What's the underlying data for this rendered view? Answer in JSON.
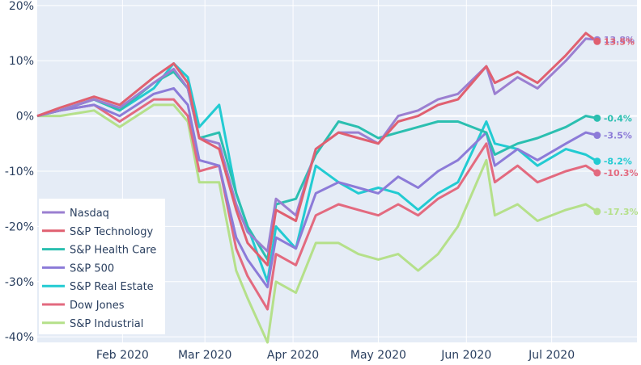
{
  "chart_data": {
    "type": "line",
    "title": "",
    "xlabel": "",
    "ylabel": "",
    "x_range": [
      "2020-01-02",
      "2020-07-31"
    ],
    "ylim": [
      -41,
      21
    ],
    "y_ticks": [
      {
        "value": 20,
        "label": "20%"
      },
      {
        "value": 10,
        "label": "10%"
      },
      {
        "value": 0,
        "label": "0%"
      },
      {
        "value": -10,
        "label": "-10%"
      },
      {
        "value": -20,
        "label": "-20%"
      },
      {
        "value": -30,
        "label": "-30%"
      },
      {
        "value": -40,
        "label": "-40%"
      }
    ],
    "x_ticks": [
      {
        "date": "2020-02-01",
        "label": "Feb 2020"
      },
      {
        "date": "2020-03-01",
        "label": "Mar 2020"
      },
      {
        "date": "2020-04-01",
        "label": "Apr 2020"
      },
      {
        "date": "2020-05-01",
        "label": "May 2020"
      },
      {
        "date": "2020-06-01",
        "label": "Jun 2020"
      },
      {
        "date": "2020-07-01",
        "label": "Jul 2020"
      }
    ],
    "grid": true,
    "background": "#e5ecf6",
    "legend_position": "bottom-left",
    "series": [
      {
        "name": "Nasdaq",
        "color": "#9b7fd1",
        "end_label": "13.8%",
        "points": [
          [
            "2020-01-02",
            0
          ],
          [
            "2020-01-10",
            1
          ],
          [
            "2020-01-22",
            3
          ],
          [
            "2020-01-31",
            1.5
          ],
          [
            "2020-02-12",
            6
          ],
          [
            "2020-02-19",
            8.5
          ],
          [
            "2020-02-24",
            5
          ],
          [
            "2020-02-28",
            -4
          ],
          [
            "2020-03-06",
            -5
          ],
          [
            "2020-03-12",
            -16
          ],
          [
            "2020-03-16",
            -21
          ],
          [
            "2020-03-23",
            -24.5
          ],
          [
            "2020-03-26",
            -15
          ],
          [
            "2020-04-02",
            -18
          ],
          [
            "2020-04-09",
            -6
          ],
          [
            "2020-04-17",
            -3
          ],
          [
            "2020-04-24",
            -3
          ],
          [
            "2020-05-01",
            -5
          ],
          [
            "2020-05-08",
            0
          ],
          [
            "2020-05-15",
            1
          ],
          [
            "2020-05-22",
            3
          ],
          [
            "2020-05-29",
            4
          ],
          [
            "2020-06-08",
            9
          ],
          [
            "2020-06-11",
            4
          ],
          [
            "2020-06-19",
            7
          ],
          [
            "2020-06-26",
            5
          ],
          [
            "2020-07-06",
            10
          ],
          [
            "2020-07-13",
            14
          ],
          [
            "2020-07-17",
            13.8
          ]
        ]
      },
      {
        "name": "S&P Technology",
        "color": "#e06070",
        "end_label": "13.5%",
        "points": [
          [
            "2020-01-02",
            0
          ],
          [
            "2020-01-10",
            1.5
          ],
          [
            "2020-01-22",
            3.5
          ],
          [
            "2020-01-31",
            2
          ],
          [
            "2020-02-12",
            7
          ],
          [
            "2020-02-19",
            9.5
          ],
          [
            "2020-02-24",
            6
          ],
          [
            "2020-02-28",
            -4
          ],
          [
            "2020-03-06",
            -6
          ],
          [
            "2020-03-12",
            -17
          ],
          [
            "2020-03-16",
            -23
          ],
          [
            "2020-03-23",
            -27
          ],
          [
            "2020-03-26",
            -17
          ],
          [
            "2020-04-02",
            -19
          ],
          [
            "2020-04-09",
            -6
          ],
          [
            "2020-04-17",
            -3
          ],
          [
            "2020-04-24",
            -4
          ],
          [
            "2020-05-01",
            -5
          ],
          [
            "2020-05-08",
            -1
          ],
          [
            "2020-05-15",
            0
          ],
          [
            "2020-05-22",
            2
          ],
          [
            "2020-05-29",
            3
          ],
          [
            "2020-06-08",
            9
          ],
          [
            "2020-06-11",
            6
          ],
          [
            "2020-06-19",
            8
          ],
          [
            "2020-06-26",
            6
          ],
          [
            "2020-07-06",
            11
          ],
          [
            "2020-07-13",
            15
          ],
          [
            "2020-07-17",
            13.5
          ]
        ]
      },
      {
        "name": "S&P Health Care",
        "color": "#2bbfb0",
        "end_label": "-0.4%",
        "points": [
          [
            "2020-01-02",
            0
          ],
          [
            "2020-01-10",
            1
          ],
          [
            "2020-01-22",
            3
          ],
          [
            "2020-01-31",
            1
          ],
          [
            "2020-02-12",
            6
          ],
          [
            "2020-02-19",
            8
          ],
          [
            "2020-02-24",
            5
          ],
          [
            "2020-02-28",
            -4
          ],
          [
            "2020-03-06",
            -3
          ],
          [
            "2020-03-12",
            -14
          ],
          [
            "2020-03-16",
            -20
          ],
          [
            "2020-03-23",
            -26
          ],
          [
            "2020-03-26",
            -16
          ],
          [
            "2020-04-02",
            -15
          ],
          [
            "2020-04-09",
            -7
          ],
          [
            "2020-04-17",
            -1
          ],
          [
            "2020-04-24",
            -2
          ],
          [
            "2020-05-01",
            -4
          ],
          [
            "2020-05-08",
            -3
          ],
          [
            "2020-05-15",
            -2
          ],
          [
            "2020-05-22",
            -1
          ],
          [
            "2020-05-29",
            -1
          ],
          [
            "2020-06-08",
            -3
          ],
          [
            "2020-06-11",
            -7
          ],
          [
            "2020-06-19",
            -5
          ],
          [
            "2020-06-26",
            -4
          ],
          [
            "2020-07-06",
            -2
          ],
          [
            "2020-07-13",
            0
          ],
          [
            "2020-07-17",
            -0.4
          ]
        ]
      },
      {
        "name": "S&P 500",
        "color": "#8c7bd8",
        "end_label": "-3.5%",
        "points": [
          [
            "2020-01-02",
            0
          ],
          [
            "2020-01-10",
            1
          ],
          [
            "2020-01-22",
            2
          ],
          [
            "2020-01-31",
            0
          ],
          [
            "2020-02-12",
            4
          ],
          [
            "2020-02-19",
            5
          ],
          [
            "2020-02-24",
            2
          ],
          [
            "2020-02-28",
            -8
          ],
          [
            "2020-03-06",
            -9
          ],
          [
            "2020-03-12",
            -22
          ],
          [
            "2020-03-16",
            -26
          ],
          [
            "2020-03-23",
            -31
          ],
          [
            "2020-03-26",
            -22
          ],
          [
            "2020-04-02",
            -24
          ],
          [
            "2020-04-09",
            -14
          ],
          [
            "2020-04-17",
            -12
          ],
          [
            "2020-04-24",
            -13
          ],
          [
            "2020-05-01",
            -14
          ],
          [
            "2020-05-08",
            -11
          ],
          [
            "2020-05-15",
            -13
          ],
          [
            "2020-05-22",
            -10
          ],
          [
            "2020-05-29",
            -8
          ],
          [
            "2020-06-08",
            -3
          ],
          [
            "2020-06-11",
            -9
          ],
          [
            "2020-06-19",
            -6
          ],
          [
            "2020-06-26",
            -8
          ],
          [
            "2020-07-06",
            -5
          ],
          [
            "2020-07-13",
            -3
          ],
          [
            "2020-07-17",
            -3.5
          ]
        ]
      },
      {
        "name": "S&P Real Estate",
        "color": "#22cbd2",
        "end_label": "-8.2%",
        "points": [
          [
            "2020-01-02",
            0
          ],
          [
            "2020-01-10",
            1
          ],
          [
            "2020-01-22",
            3
          ],
          [
            "2020-01-31",
            1
          ],
          [
            "2020-02-12",
            5
          ],
          [
            "2020-02-19",
            9.5
          ],
          [
            "2020-02-24",
            7
          ],
          [
            "2020-02-28",
            -2
          ],
          [
            "2020-03-06",
            2
          ],
          [
            "2020-03-12",
            -14
          ],
          [
            "2020-03-16",
            -20
          ],
          [
            "2020-03-23",
            -30
          ],
          [
            "2020-03-26",
            -20
          ],
          [
            "2020-04-02",
            -24
          ],
          [
            "2020-04-09",
            -9
          ],
          [
            "2020-04-17",
            -12
          ],
          [
            "2020-04-24",
            -14
          ],
          [
            "2020-05-01",
            -13
          ],
          [
            "2020-05-08",
            -14
          ],
          [
            "2020-05-15",
            -17
          ],
          [
            "2020-05-22",
            -14
          ],
          [
            "2020-05-29",
            -12
          ],
          [
            "2020-06-08",
            -1
          ],
          [
            "2020-06-11",
            -5
          ],
          [
            "2020-06-19",
            -6
          ],
          [
            "2020-06-26",
            -9
          ],
          [
            "2020-07-06",
            -6
          ],
          [
            "2020-07-13",
            -7
          ],
          [
            "2020-07-17",
            -8.2
          ]
        ]
      },
      {
        "name": "Dow Jones",
        "color": "#e36a7f",
        "end_label": "-10.3%",
        "points": [
          [
            "2020-01-02",
            0
          ],
          [
            "2020-01-10",
            1
          ],
          [
            "2020-01-22",
            2
          ],
          [
            "2020-01-31",
            -1
          ],
          [
            "2020-02-12",
            3
          ],
          [
            "2020-02-19",
            3
          ],
          [
            "2020-02-24",
            0
          ],
          [
            "2020-02-28",
            -10
          ],
          [
            "2020-03-06",
            -9
          ],
          [
            "2020-03-12",
            -24
          ],
          [
            "2020-03-16",
            -29
          ],
          [
            "2020-03-23",
            -35
          ],
          [
            "2020-03-26",
            -25
          ],
          [
            "2020-04-02",
            -27
          ],
          [
            "2020-04-09",
            -18
          ],
          [
            "2020-04-17",
            -16
          ],
          [
            "2020-04-24",
            -17
          ],
          [
            "2020-05-01",
            -18
          ],
          [
            "2020-05-08",
            -16
          ],
          [
            "2020-05-15",
            -18
          ],
          [
            "2020-05-22",
            -15
          ],
          [
            "2020-05-29",
            -13
          ],
          [
            "2020-06-08",
            -5
          ],
          [
            "2020-06-11",
            -12
          ],
          [
            "2020-06-19",
            -9
          ],
          [
            "2020-06-26",
            -12
          ],
          [
            "2020-07-06",
            -10
          ],
          [
            "2020-07-13",
            -9
          ],
          [
            "2020-07-17",
            -10.3
          ]
        ]
      },
      {
        "name": "S&P Industrial",
        "color": "#b5e08a",
        "end_label": "-17.3%",
        "points": [
          [
            "2020-01-02",
            0
          ],
          [
            "2020-01-10",
            0
          ],
          [
            "2020-01-22",
            1
          ],
          [
            "2020-01-31",
            -2
          ],
          [
            "2020-02-12",
            2
          ],
          [
            "2020-02-19",
            2
          ],
          [
            "2020-02-24",
            -1
          ],
          [
            "2020-02-28",
            -12
          ],
          [
            "2020-03-06",
            -12
          ],
          [
            "2020-03-12",
            -28
          ],
          [
            "2020-03-16",
            -33
          ],
          [
            "2020-03-23",
            -41
          ],
          [
            "2020-03-26",
            -30
          ],
          [
            "2020-04-02",
            -32
          ],
          [
            "2020-04-09",
            -23
          ],
          [
            "2020-04-17",
            -23
          ],
          [
            "2020-04-24",
            -25
          ],
          [
            "2020-05-01",
            -26
          ],
          [
            "2020-05-08",
            -25
          ],
          [
            "2020-05-15",
            -28
          ],
          [
            "2020-05-22",
            -25
          ],
          [
            "2020-05-29",
            -20
          ],
          [
            "2020-06-08",
            -8
          ],
          [
            "2020-06-11",
            -18
          ],
          [
            "2020-06-19",
            -16
          ],
          [
            "2020-06-26",
            -19
          ],
          [
            "2020-07-06",
            -17
          ],
          [
            "2020-07-13",
            -16
          ],
          [
            "2020-07-17",
            -17.3
          ]
        ]
      }
    ]
  }
}
